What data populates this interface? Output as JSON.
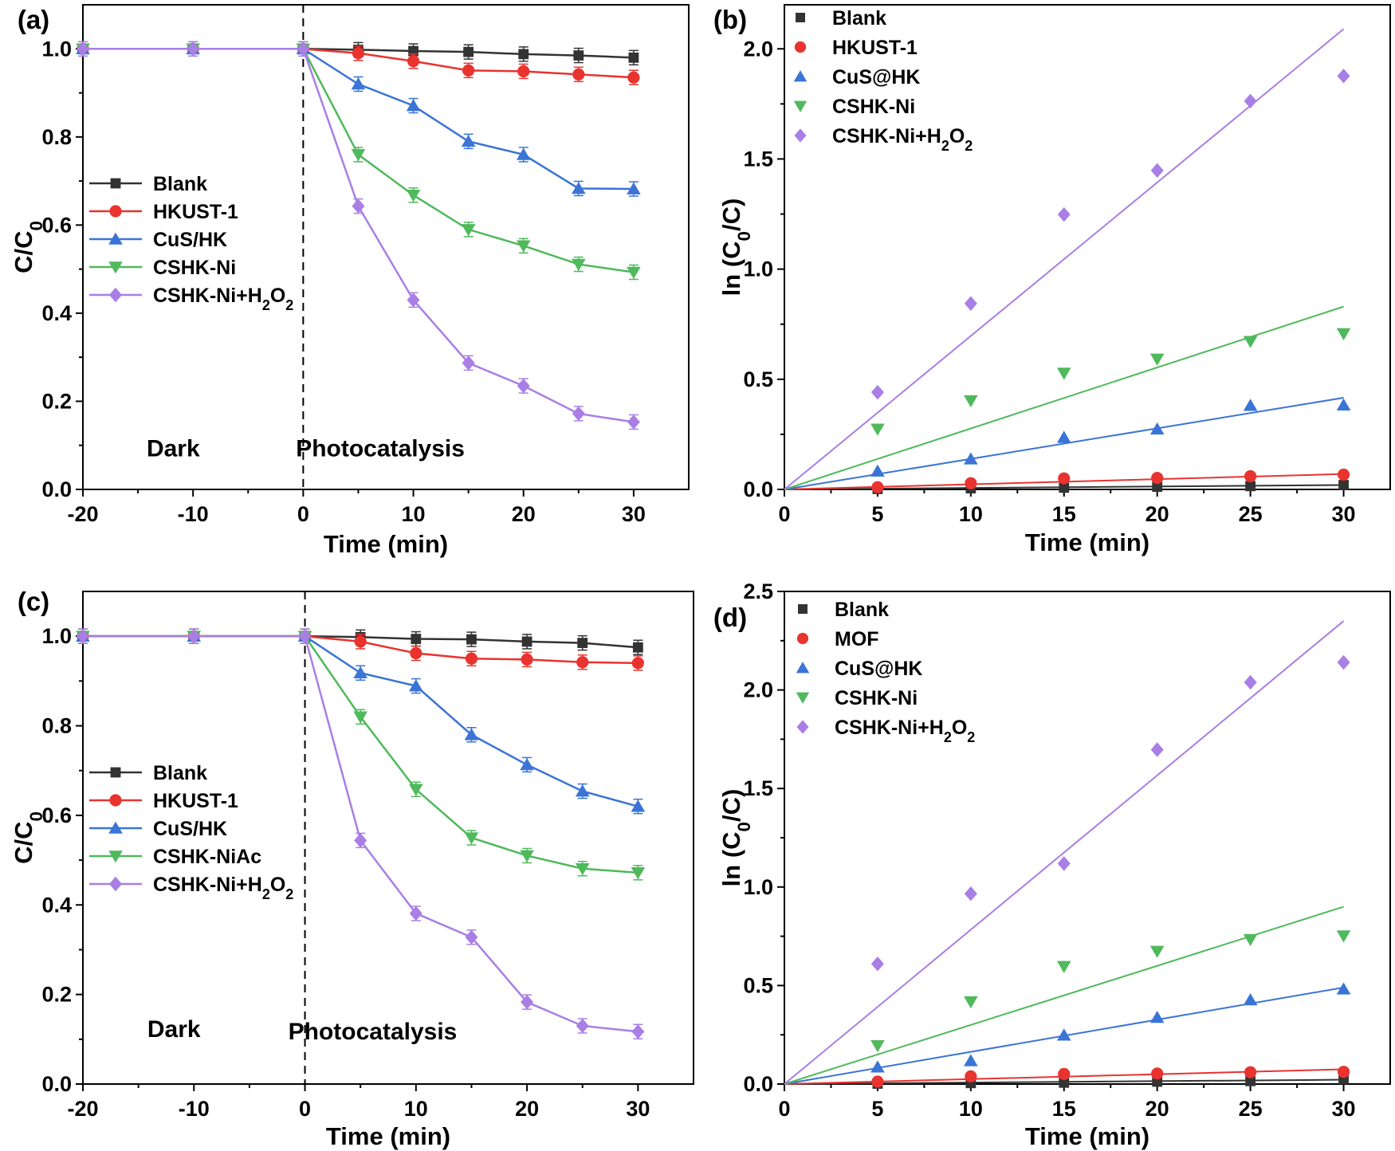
{
  "chart_data": [
    {
      "panel": "(a)",
      "type": "line",
      "xlabel": "Time (min)",
      "ylabel": "C/C0",
      "xlim": [
        -20,
        35
      ],
      "ylim": [
        0,
        1.1
      ],
      "xticks": [
        -20,
        -10,
        0,
        10,
        20,
        30
      ],
      "yticks": [
        0.0,
        0.2,
        0.4,
        0.6,
        0.8,
        1.0
      ],
      "divider_x": 0,
      "annotations": [
        {
          "text": "Dark",
          "x": -11.8,
          "y": 0.075
        },
        {
          "text": "Photocatalysis",
          "x": 7,
          "y": 0.075
        }
      ],
      "legend_position": "middle-left",
      "x": [
        -20,
        -10,
        0,
        5,
        10,
        15,
        20,
        25,
        30
      ],
      "series": [
        {
          "name": "Blank",
          "color": "#333333",
          "marker": "square",
          "values": [
            1.0,
            1.0,
            1.0,
            0.998,
            0.995,
            0.993,
            0.988,
            0.985,
            0.98
          ]
        },
        {
          "name": "HKUST-1",
          "color": "#e8332f",
          "marker": "circle",
          "values": [
            1.0,
            1.0,
            1.0,
            0.99,
            0.972,
            0.951,
            0.949,
            0.942,
            0.935
          ]
        },
        {
          "name": "CuS/HK",
          "color": "#3a74d6",
          "marker": "triangle-up",
          "values": [
            1.0,
            1.0,
            1.0,
            0.92,
            0.871,
            0.79,
            0.76,
            0.683,
            0.682
          ]
        },
        {
          "name": "CSHK-Ni",
          "color": "#4fb95b",
          "marker": "triangle-down",
          "values": [
            1.0,
            1.0,
            1.0,
            0.76,
            0.668,
            0.59,
            0.553,
            0.511,
            0.493
          ]
        },
        {
          "name": "CSHK-Ni+H2O2",
          "color": "#a97ee5",
          "marker": "diamond",
          "values": [
            1.0,
            1.0,
            1.0,
            0.643,
            0.43,
            0.287,
            0.235,
            0.172,
            0.153
          ]
        }
      ]
    },
    {
      "panel": "(b)",
      "type": "scatter",
      "xlabel": "Time (min)",
      "ylabel": "ln (C0/C)",
      "xlim": [
        0,
        32.5
      ],
      "ylim": [
        0,
        2.2
      ],
      "xticks": [
        0,
        5,
        10,
        15,
        20,
        25,
        30
      ],
      "yticks": [
        0.0,
        0.5,
        1.0,
        1.5,
        2.0
      ],
      "legend_position": "top-left",
      "x": [
        0,
        5,
        10,
        15,
        20,
        25,
        30
      ],
      "series": [
        {
          "name": "Blank",
          "color": "#333333",
          "marker": "square",
          "values": [
            0,
            0.002,
            0.005,
            0.008,
            0.012,
            0.015,
            0.02
          ],
          "fit": [
            0,
            0.02
          ]
        },
        {
          "name": "HKUST-1",
          "color": "#e8332f",
          "marker": "circle",
          "values": [
            0,
            0.01,
            0.028,
            0.05,
            0.052,
            0.06,
            0.067
          ],
          "fit": [
            0,
            0.07
          ]
        },
        {
          "name": "CuS@HK",
          "color": "#3a74d6",
          "marker": "triangle-up",
          "values": [
            0,
            0.083,
            0.138,
            0.236,
            0.274,
            0.381,
            0.383
          ],
          "fit": [
            0,
            0.416
          ]
        },
        {
          "name": "CSHK-Ni",
          "color": "#4fb95b",
          "marker": "triangle-down",
          "values": [
            0,
            0.274,
            0.403,
            0.528,
            0.592,
            0.672,
            0.707
          ],
          "fit": [
            0,
            0.83
          ]
        },
        {
          "name": "CSHK-Ni+H2O2",
          "color": "#a97ee5",
          "marker": "diamond",
          "values": [
            0,
            0.441,
            0.844,
            1.248,
            1.448,
            1.763,
            1.877
          ],
          "fit": [
            0,
            2.09
          ]
        }
      ]
    },
    {
      "panel": "(c)",
      "type": "line",
      "xlabel": "Time (min)",
      "ylabel": "C/C0",
      "xlim": [
        -20,
        35
      ],
      "ylim": [
        0,
        1.1
      ],
      "xticks": [
        -20,
        -10,
        0,
        10,
        20,
        30
      ],
      "yticks": [
        0.0,
        0.2,
        0.4,
        0.6,
        0.8,
        1.0
      ],
      "divider_x": 0,
      "annotations": [
        {
          "text": "Dark",
          "x": -11.8,
          "y": 0.105
        },
        {
          "text": "Photocatalysis",
          "x": 6.1,
          "y": 0.1
        }
      ],
      "legend_position": "middle-left",
      "x": [
        -20,
        -10,
        0,
        5,
        10,
        15,
        20,
        25,
        30
      ],
      "series": [
        {
          "name": "Blank",
          "color": "#333333",
          "marker": "square",
          "values": [
            1.0,
            1.0,
            1.0,
            0.998,
            0.994,
            0.993,
            0.988,
            0.985,
            0.975
          ]
        },
        {
          "name": "HKUST-1",
          "color": "#e8332f",
          "marker": "circle",
          "values": [
            1.0,
            1.0,
            1.0,
            0.988,
            0.962,
            0.95,
            0.948,
            0.942,
            0.94
          ]
        },
        {
          "name": "CuS/HK",
          "color": "#3a74d6",
          "marker": "triangle-up",
          "values": [
            1.0,
            1.0,
            1.0,
            0.918,
            0.889,
            0.78,
            0.713,
            0.654,
            0.62
          ]
        },
        {
          "name": "CSHK-NiAc",
          "color": "#4fb95b",
          "marker": "triangle-down",
          "values": [
            1.0,
            1.0,
            1.0,
            0.82,
            0.658,
            0.55,
            0.51,
            0.481,
            0.472
          ]
        },
        {
          "name": "CSHK-Ni+H2O2",
          "color": "#a97ee5",
          "marker": "diamond",
          "values": [
            1.0,
            1.0,
            1.0,
            0.544,
            0.381,
            0.328,
            0.183,
            0.13,
            0.117
          ]
        }
      ]
    },
    {
      "panel": "(d)",
      "type": "scatter",
      "xlabel": "Time (min)",
      "ylabel": "ln (C0/C)",
      "xlim": [
        0,
        32.5
      ],
      "ylim": [
        0,
        2.5
      ],
      "xticks": [
        0,
        5,
        10,
        15,
        20,
        25,
        30
      ],
      "yticks": [
        0.0,
        0.5,
        1.0,
        1.5,
        2.0,
        2.5
      ],
      "legend_position": "top-left",
      "x": [
        0,
        5,
        10,
        15,
        20,
        25,
        30
      ],
      "series": [
        {
          "name": "Blank",
          "color": "#333333",
          "marker": "square",
          "values": [
            0,
            0.002,
            0.005,
            0.007,
            0.012,
            0.015,
            0.025
          ],
          "fit": [
            0,
            0.022
          ]
        },
        {
          "name": "MOF",
          "color": "#e8332f",
          "marker": "circle",
          "values": [
            0,
            0.012,
            0.039,
            0.051,
            0.053,
            0.06,
            0.062
          ],
          "fit": [
            0,
            0.075
          ]
        },
        {
          "name": "CuS@HK",
          "color": "#3a74d6",
          "marker": "triangle-up",
          "values": [
            0,
            0.086,
            0.118,
            0.248,
            0.338,
            0.427,
            0.482
          ],
          "fit": [
            0,
            0.49
          ]
        },
        {
          "name": "CSHK-Ni",
          "color": "#4fb95b",
          "marker": "triangle-down",
          "values": [
            0,
            0.195,
            0.418,
            0.597,
            0.674,
            0.734,
            0.752
          ],
          "fit": [
            0,
            0.9
          ]
        },
        {
          "name": "CSHK-Ni+H2O2",
          "color": "#a97ee5",
          "marker": "diamond",
          "values": [
            0,
            0.61,
            0.966,
            1.119,
            1.697,
            2.039,
            2.14
          ],
          "fit": [
            0,
            2.35
          ]
        }
      ]
    }
  ]
}
